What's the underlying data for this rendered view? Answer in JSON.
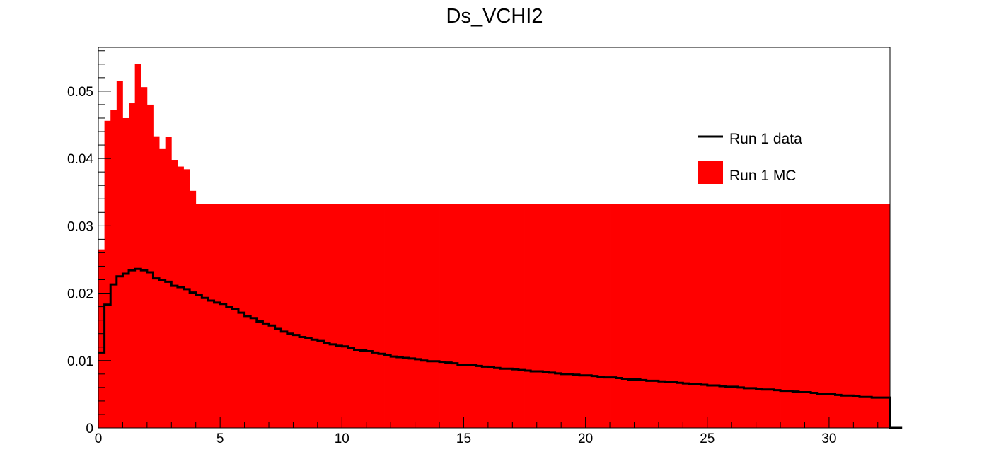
{
  "chart_data": {
    "type": "bar",
    "title": "Ds_VCHI2",
    "xlabel": "",
    "ylabel": "",
    "xlim": [
      0,
      32.5
    ],
    "ylim": [
      0,
      0.0565
    ],
    "x_ticks": [
      "0",
      "5",
      "10",
      "15",
      "20",
      "25",
      "30"
    ],
    "y_ticks": [
      "0",
      "0.01",
      "0.02",
      "0.03",
      "0.04",
      "0.05"
    ],
    "bin_width": 0.25,
    "grid": false,
    "legend_position": "top-right",
    "series": [
      {
        "name": "Run 1 MC",
        "style": "filled",
        "color": "#ff0000",
        "values": [
          0.0265,
          0.0456,
          0.0472,
          0.0515,
          0.046,
          0.0482,
          0.054,
          0.0506,
          0.048,
          0.0433,
          0.0415,
          0.0432,
          0.0398,
          0.0388,
          0.0384,
          0.0352,
          0.0332,
          0.0332,
          0.0332,
          0.0332,
          0.0332,
          0.0332,
          0.0332,
          0.0332,
          0.0332,
          0.0332,
          0.0332,
          0.0332,
          0.0332,
          0.0332,
          0.0332,
          0.0332,
          0.0332,
          0.0332,
          0.0332,
          0.0332,
          0.0332,
          0.0332,
          0.0332,
          0.0332,
          0.0332,
          0.0332,
          0.0332,
          0.0332,
          0.0332,
          0.0332,
          0.0332,
          0.0332,
          0.0332,
          0.0332,
          0.0332,
          0.0332,
          0.0332,
          0.0332,
          0.0332,
          0.0332,
          0.0332,
          0.0332,
          0.0332,
          0.0332,
          0.0332,
          0.0332,
          0.0332,
          0.0332,
          0.0332,
          0.0332,
          0.0332,
          0.0332,
          0.0332,
          0.0332,
          0.0332,
          0.0332,
          0.0332,
          0.0332,
          0.0332,
          0.0332,
          0.0332,
          0.0332,
          0.0332,
          0.0332,
          0.0332,
          0.0332,
          0.0332,
          0.0332,
          0.0332,
          0.0332,
          0.0332,
          0.0332,
          0.0332,
          0.0332,
          0.0332,
          0.0332,
          0.0332,
          0.0332,
          0.0332,
          0.0332,
          0.0332,
          0.0332,
          0.0332,
          0.0332,
          0.0332,
          0.0332,
          0.0332,
          0.0332,
          0.0332,
          0.0332,
          0.0332,
          0.0332,
          0.0332,
          0.0332,
          0.0332,
          0.0332,
          0.0332,
          0.0332,
          0.0332,
          0.0332,
          0.0332,
          0.0332,
          0.0332,
          0.0332,
          0.0332,
          0.0332,
          0.0332,
          0.0332,
          0.0332,
          0.0332,
          0.0332,
          0.0332,
          0.0332,
          0.0332
        ]
      },
      {
        "name": "Run 1 data",
        "style": "step",
        "color": "#000000",
        "values": [
          0.0112,
          0.0183,
          0.0213,
          0.0225,
          0.0229,
          0.0234,
          0.0236,
          0.0234,
          0.0231,
          0.0222,
          0.0219,
          0.0217,
          0.0211,
          0.0209,
          0.0206,
          0.0201,
          0.0197,
          0.0193,
          0.0189,
          0.0186,
          0.0184,
          0.018,
          0.0176,
          0.0171,
          0.0166,
          0.0163,
          0.0158,
          0.0155,
          0.0152,
          0.0147,
          0.0143,
          0.014,
          0.0138,
          0.0135,
          0.0133,
          0.0131,
          0.0129,
          0.0126,
          0.0124,
          0.0122,
          0.0121,
          0.0119,
          0.0116,
          0.0115,
          0.0114,
          0.0112,
          0.011,
          0.0108,
          0.0106,
          0.0105,
          0.0104,
          0.0103,
          0.0102,
          0.01,
          0.0099,
          0.0099,
          0.0098,
          0.0097,
          0.0096,
          0.0094,
          0.0093,
          0.0093,
          0.0092,
          0.0091,
          0.009,
          0.0089,
          0.0088,
          0.0088,
          0.0087,
          0.0086,
          0.0085,
          0.0084,
          0.0084,
          0.0083,
          0.0082,
          0.0081,
          0.008,
          0.008,
          0.0079,
          0.0078,
          0.0078,
          0.0077,
          0.0076,
          0.0075,
          0.0075,
          0.0074,
          0.0073,
          0.0072,
          0.0072,
          0.0071,
          0.007,
          0.007,
          0.0069,
          0.0068,
          0.0068,
          0.0067,
          0.0066,
          0.0065,
          0.0065,
          0.0064,
          0.0063,
          0.0063,
          0.0062,
          0.0061,
          0.0061,
          0.006,
          0.0059,
          0.0059,
          0.0058,
          0.0057,
          0.0057,
          0.0056,
          0.0055,
          0.0055,
          0.0054,
          0.0053,
          0.0053,
          0.0052,
          0.0051,
          0.0051,
          0.005,
          0.0049,
          0.0048,
          0.0048,
          0.0047,
          0.0046,
          0.0046,
          0.0045,
          0.0045,
          0.0045,
          0.0,
          0.0
        ]
      }
    ]
  }
}
